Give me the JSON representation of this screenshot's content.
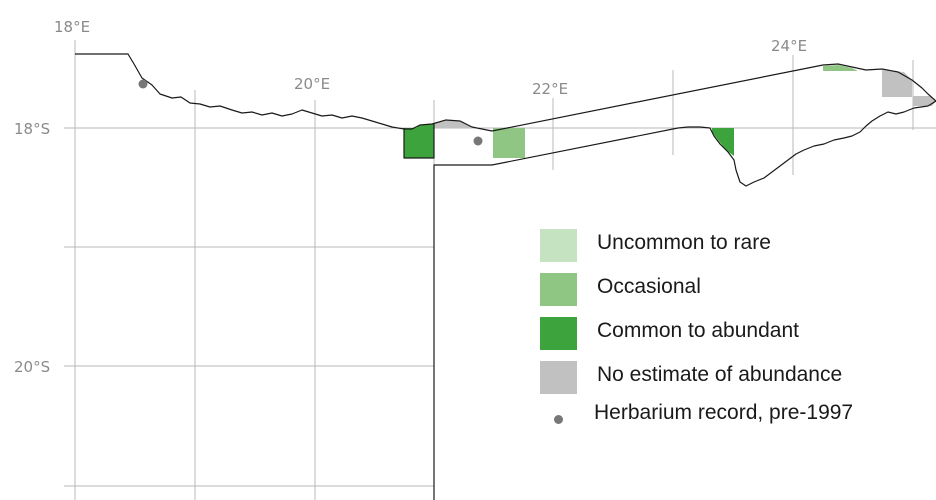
{
  "map": {
    "lon_labels": [
      "18°E",
      "20°E",
      "22°E",
      "24°E"
    ],
    "lat_labels": [
      "18°S",
      "20°S"
    ]
  },
  "legend": {
    "items": [
      {
        "label": "Uncommon to rare",
        "color": "#c5e3c0"
      },
      {
        "label": "Occasional",
        "color": "#8fc683"
      },
      {
        "label": "Common to abundant",
        "color": "#3da33d"
      },
      {
        "label": "No estimate of abundance",
        "color": "#c1c1c1"
      }
    ],
    "herbarium": {
      "label": "Herbarium record, pre-1997",
      "color": "#777777"
    }
  }
}
